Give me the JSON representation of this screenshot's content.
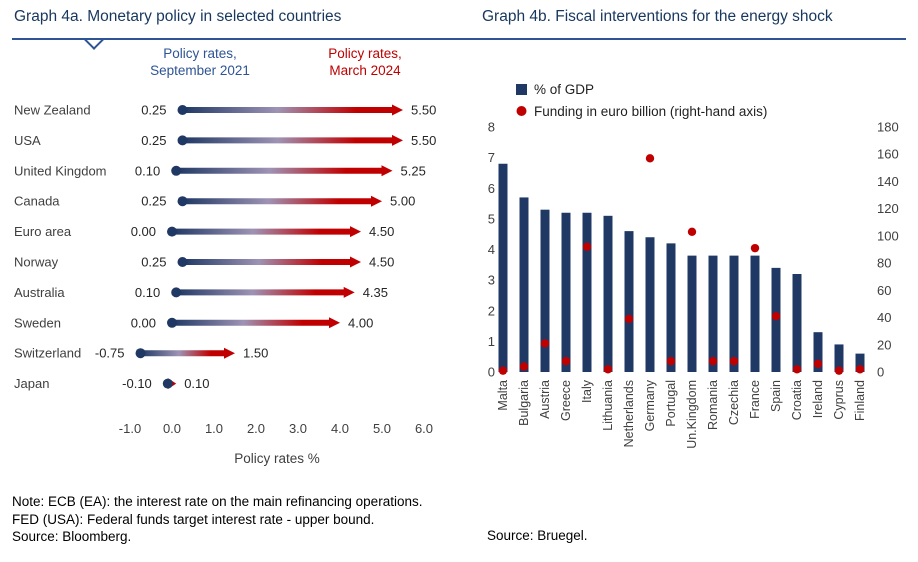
{
  "header": {
    "left_title": "Graph 4a. Monetary policy in selected countries",
    "right_title": "Graph 4b. Fiscal interventions for the energy shock"
  },
  "notes": {
    "line1": "Note: ECB (EA): the interest rate on the main refinancing operations.",
    "line2": "FED (USA): Federal funds target interest rate - upper bound.",
    "source_left": "Source: Bloomberg.",
    "source_right": "Source: Bruegel."
  },
  "colors": {
    "title_blue": "#17375E",
    "legend_blue": "#2E5496",
    "red": "#C00000",
    "navy": "#1F3864",
    "label_gray": "#3F3F3F"
  },
  "chart_data": [
    {
      "type": "scatter",
      "subtype": "dumbbell-arrow",
      "title": "Graph 4a. Monetary policy in selected countries",
      "legend": [
        {
          "label_line1": "Policy rates,",
          "label_line2": "September 2021",
          "color": "#2E5496"
        },
        {
          "label_line1": "Policy rates,",
          "label_line2": "March 2024",
          "color": "#C00000"
        }
      ],
      "xlabel": "Policy rates %",
      "xlim": [
        -1.0,
        6.0
      ],
      "xticks": [
        -1.0,
        0.0,
        1.0,
        2.0,
        3.0,
        4.0,
        5.0,
        6.0
      ],
      "grid": false,
      "categories": [
        "New Zealand",
        "USA",
        "United Kingdom",
        "Canada",
        "Euro area",
        "Norway",
        "Australia",
        "Sweden",
        "Switzerland",
        "Japan"
      ],
      "series": [
        {
          "name": "Policy rates, September 2021",
          "values": [
            0.25,
            0.25,
            0.1,
            0.25,
            0.0,
            0.25,
            0.1,
            0.0,
            -0.75,
            -0.1
          ]
        },
        {
          "name": "Policy rates, March 2024",
          "values": [
            5.5,
            5.5,
            5.25,
            5.0,
            4.5,
            4.5,
            4.35,
            4.0,
            1.5,
            0.1
          ]
        }
      ],
      "value_labels": {
        "start": [
          "0.25",
          "0.25",
          "0.10",
          "0.25",
          "0.00",
          "0.25",
          "0.10",
          "0.00",
          "-0.75",
          "-0.10"
        ],
        "end": [
          "5.50",
          "5.50",
          "5.25",
          "5.00",
          "4.50",
          "4.50",
          "4.35",
          "4.00",
          "1.50",
          "0.10"
        ]
      }
    },
    {
      "type": "bar",
      "subtype": "bar-with-point-overlay",
      "title": "Graph 4b. Fiscal interventions for the energy shock",
      "legend": [
        {
          "label": "% of GDP",
          "marker": "square",
          "color": "#1F3864"
        },
        {
          "label": "Funding in euro billion (right-hand axis)",
          "marker": "circle",
          "color": "#C00000"
        }
      ],
      "grid": false,
      "legend_position": "top-left",
      "categories": [
        "Malta",
        "Bulgaria",
        "Austria",
        "Greece",
        "Italy",
        "Lithuania",
        "Netherlands",
        "Germany",
        "Portugal",
        "Un.Kingdom",
        "Romania",
        "Czechia",
        "France",
        "Spain",
        "Croatia",
        "Ireland",
        "Cyprus",
        "Finland"
      ],
      "series": [
        {
          "name": "% of GDP",
          "axis": "left",
          "values": [
            6.8,
            5.7,
            5.3,
            5.2,
            5.2,
            5.1,
            4.6,
            4.4,
            4.2,
            3.8,
            3.8,
            3.8,
            3.8,
            3.4,
            3.2,
            1.3,
            0.9,
            0.6
          ]
        },
        {
          "name": "Funding in euro billion (right-hand axis)",
          "axis": "right",
          "values": [
            1,
            4,
            21,
            8,
            92,
            2,
            39,
            157,
            8,
            103,
            8,
            8,
            91,
            41,
            2,
            6,
            1,
            2
          ]
        }
      ],
      "left_axis": {
        "min": 0,
        "max": 8,
        "ticks": [
          8,
          7,
          6,
          5,
          4,
          3,
          2,
          1,
          0
        ]
      },
      "right_axis": {
        "min": 0,
        "max": 180,
        "ticks": [
          180,
          160,
          140,
          120,
          100,
          80,
          60,
          40,
          20,
          0
        ]
      }
    }
  ]
}
